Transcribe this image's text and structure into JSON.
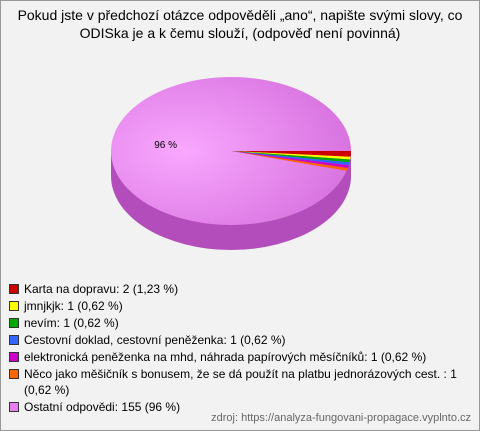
{
  "chart_data": {
    "type": "pie",
    "title": "Pokud jste v předchozí otázce odpověděli „ano“, napište svými slovy, co ODISka je a k čemu slouží, (odpověď není povinná)",
    "categories": [
      "Karta na dopravu: 2 (1,23 %)",
      "jmnjkjk: 1 (0,62 %)",
      "nevím: 1 (0,62 %)",
      "Cestovní doklad, cestovní peněženka: 1 (0,62 %)",
      "elektronická peněženka na mhd, náhrada papírových měsíčníků: 1 (0,62 %)",
      "Něco jako měšičník s bonusem, že se dá použít na platbu jednorázových cest. : 1 (0,62 %)",
      "Ostatní odpovědi: 155 (96 %)"
    ],
    "values": [
      1.23,
      0.62,
      0.62,
      0.62,
      0.62,
      0.62,
      96
    ],
    "value_labels": [
      null,
      null,
      null,
      null,
      null,
      null,
      "96 %"
    ],
    "colors": [
      "#cc0000",
      "#ffff00",
      "#00aa00",
      "#3366ff",
      "#cc00cc",
      "#ff6600",
      "#e87ff0"
    ],
    "source": "zdroj: https://analyza-fungovani-propagace.vyplnto.cz"
  }
}
